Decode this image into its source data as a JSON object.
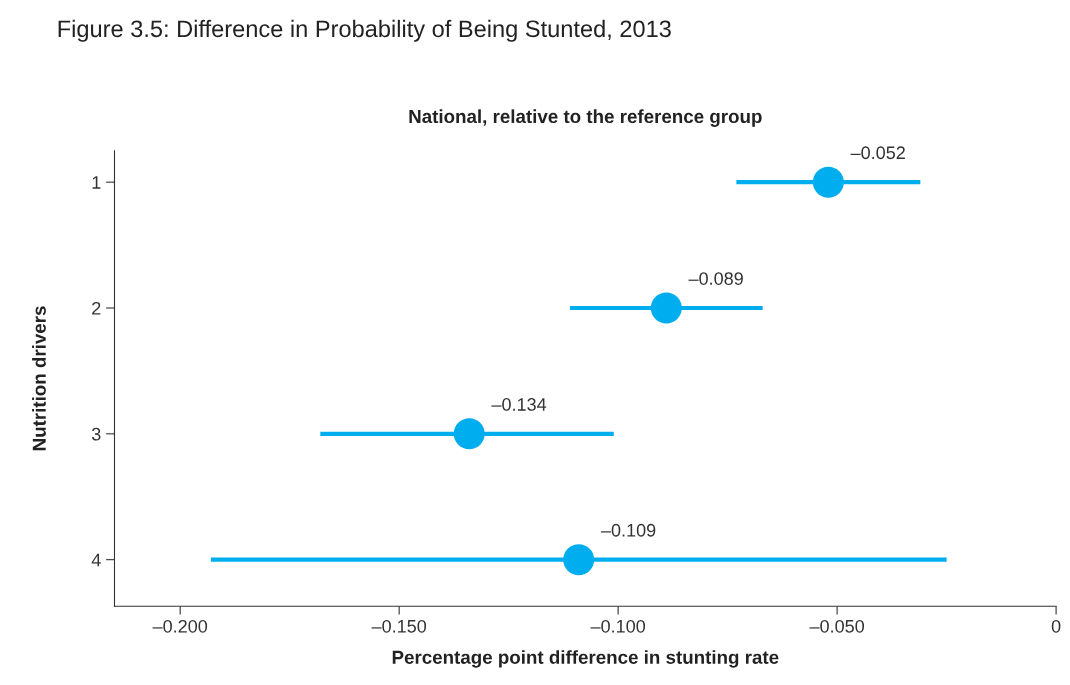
{
  "chart_data": {
    "type": "scatter",
    "orientation": "horizontal",
    "title": "Figure 3.5: Difference in Probability of Being Stunted, 2013",
    "subtitle": "National, relative to the reference group",
    "xlabel": "Percentage point difference in stunting rate",
    "ylabel": "Nutrition drivers",
    "categories": [
      "1",
      "2",
      "3",
      "4"
    ],
    "series": [
      {
        "color": "#00aeef",
        "values": [
          -0.052,
          -0.089,
          -0.134,
          -0.109
        ],
        "errors": [
          [
            -0.073,
            -0.031
          ],
          [
            -0.111,
            -0.067
          ],
          [
            -0.168,
            -0.101
          ],
          [
            -0.193,
            -0.025
          ]
        ]
      }
    ],
    "value_labels": [
      "–0.052",
      "–0.089",
      "–0.134",
      "–0.109"
    ],
    "xlim": [
      -0.215,
      0
    ],
    "xticks": [
      {
        "value": -0.2,
        "label": "–0.200"
      },
      {
        "value": -0.15,
        "label": "–0.150"
      },
      {
        "value": -0.1,
        "label": "–0.100"
      },
      {
        "value": -0.05,
        "label": "–0.050"
      },
      0
    ],
    "marker": "circle",
    "grid": false,
    "legend": false
  }
}
